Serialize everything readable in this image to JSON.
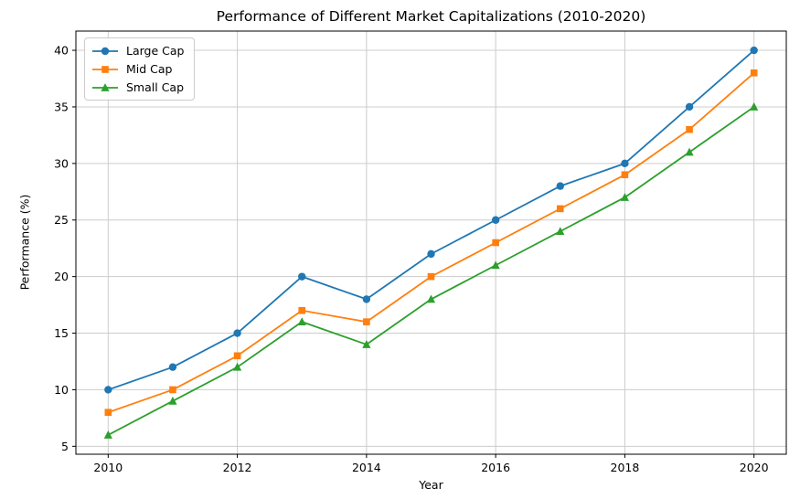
{
  "chart_data": {
    "type": "line",
    "title": "Performance of Different Market Capitalizations (2010-2020)",
    "xlabel": "Year",
    "ylabel": "Performance (%)",
    "x": [
      2010,
      2011,
      2012,
      2013,
      2014,
      2015,
      2016,
      2017,
      2018,
      2019,
      2020
    ],
    "series": [
      {
        "name": "Large Cap",
        "color": "#1f77b4",
        "marker": "circle",
        "values": [
          10,
          12,
          15,
          20,
          18,
          22,
          25,
          28,
          30,
          35,
          40
        ]
      },
      {
        "name": "Mid Cap",
        "color": "#ff7f0e",
        "marker": "square",
        "values": [
          8,
          10,
          13,
          17,
          16,
          20,
          23,
          26,
          29,
          33,
          38
        ]
      },
      {
        "name": "Small Cap",
        "color": "#2ca02c",
        "marker": "triangle",
        "values": [
          6,
          9,
          12,
          16,
          14,
          18,
          21,
          24,
          27,
          31,
          35
        ]
      }
    ],
    "x_ticks": [
      2010,
      2012,
      2014,
      2016,
      2018,
      2020
    ],
    "y_ticks": [
      5,
      10,
      15,
      20,
      25,
      30,
      35,
      40
    ],
    "xlim": [
      2009.5,
      2020.5
    ],
    "ylim": [
      4.3,
      41.7
    ],
    "grid": true,
    "legend_position": "upper left",
    "grid_color": "#cccccc",
    "spine_color": "#000000"
  }
}
